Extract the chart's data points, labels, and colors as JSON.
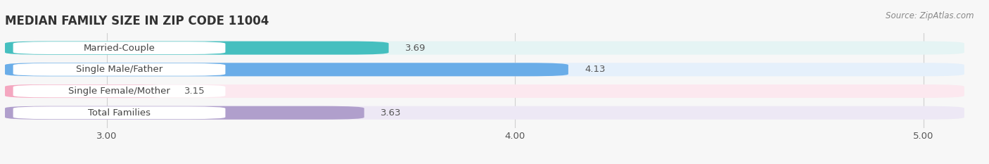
{
  "title": "MEDIAN FAMILY SIZE IN ZIP CODE 11004",
  "source_text": "Source: ZipAtlas.com",
  "categories": [
    "Married-Couple",
    "Single Male/Father",
    "Single Female/Mother",
    "Total Families"
  ],
  "values": [
    3.69,
    4.13,
    3.15,
    3.63
  ],
  "bar_colors": [
    "#45bfbf",
    "#6aade8",
    "#f4a7c0",
    "#b09fcc"
  ],
  "bar_bg_colors": [
    "#e5f4f4",
    "#e5f0fb",
    "#fce8ef",
    "#ede8f5"
  ],
  "label_bg_color": "#f5f5f5",
  "xlim": [
    2.75,
    5.1
  ],
  "xstart": 2.75,
  "xticks": [
    3.0,
    4.0,
    5.0
  ],
  "xtick_labels": [
    "3.00",
    "4.00",
    "5.00"
  ],
  "title_fontsize": 12,
  "label_fontsize": 9.5,
  "value_fontsize": 9.5,
  "bar_height": 0.62,
  "figsize": [
    14.06,
    2.33
  ],
  "dpi": 100,
  "bg_color": "#f7f7f7",
  "grid_color": "#d0d0d0",
  "text_color": "#555555",
  "source_color": "#888888"
}
